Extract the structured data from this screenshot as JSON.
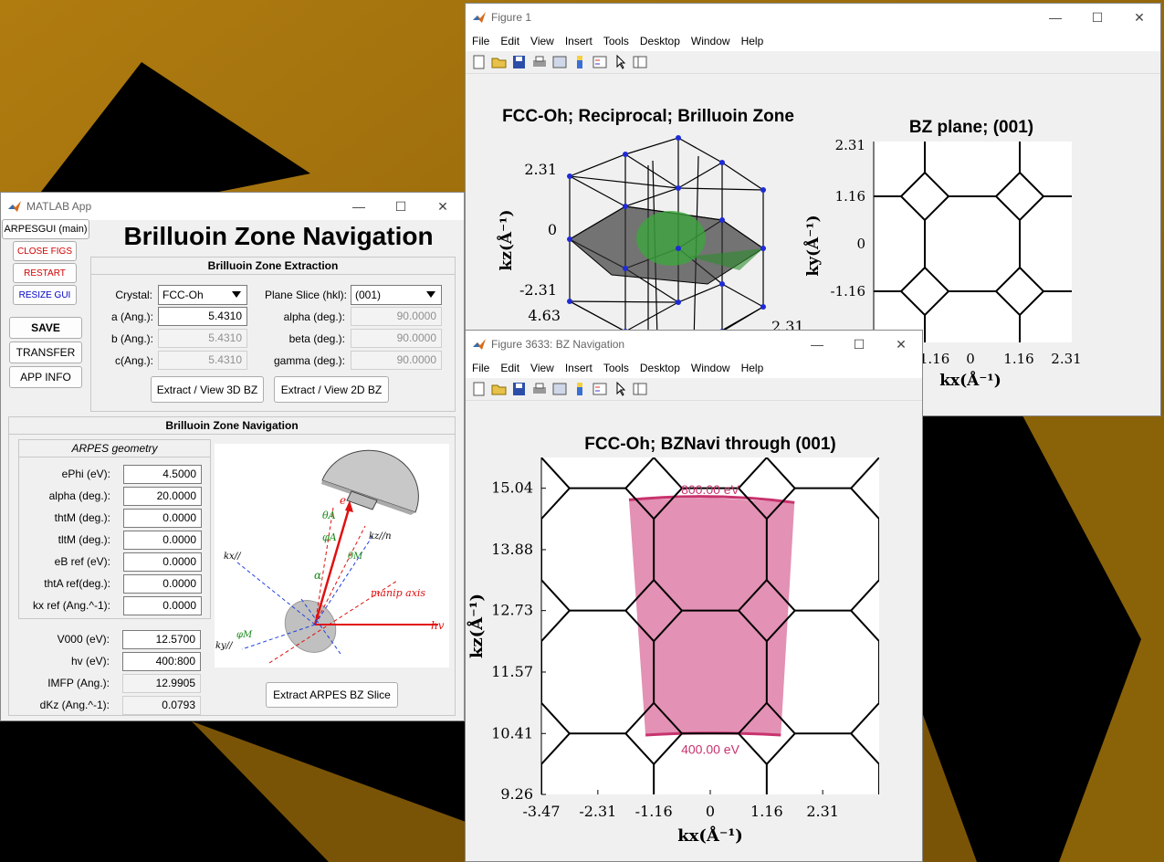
{
  "app": {
    "title": "MATLAB App",
    "main_title": "Brilluoin Zone Navigation",
    "side_buttons": {
      "arpesgui": "ARPESGUI (main)",
      "close_figs": "CLOSE FIGS",
      "restart": "RESTART",
      "resize": "RESIZE GUI",
      "save": "SAVE",
      "transfer": "TRANSFER",
      "app_info": "APP INFO"
    },
    "extraction": {
      "title": "Brilluoin Zone Extraction",
      "crystal_label": "Crystal:",
      "crystal_value": "FCC-Oh",
      "plane_label": "Plane Slice (hkl):",
      "plane_value": "(001)",
      "a_label": "a (Ang.):",
      "a_value": "5.4310",
      "b_label": "b (Ang.):",
      "b_value": "5.4310",
      "c_label": "c(Ang.):",
      "c_value": "5.4310",
      "alpha_label": "alpha (deg.):",
      "alpha_value": "90.0000",
      "beta_label": "beta (deg.):",
      "beta_value": "90.0000",
      "gamma_label": "gamma (deg.):",
      "gamma_value": "90.0000",
      "btn_3d": "Extract / View 3D BZ",
      "btn_2d": "Extract / View 2D BZ"
    },
    "navigation": {
      "title": "Brilluoin Zone Navigation",
      "geom_title": "ARPES geometry",
      "ephi_label": "ePhi (eV):",
      "ephi_value": "4.5000",
      "alpha_label": "alpha (deg.):",
      "alpha_value": "20.0000",
      "thtm_label": "thtM (deg.):",
      "thtm_value": "0.0000",
      "tltm_label": "tltM (deg.):",
      "tltm_value": "0.0000",
      "ebref_label": "eB ref (eV):",
      "ebref_value": "0.0000",
      "thtaref_label": "thtA ref(deg.):",
      "thtaref_value": "0.0000",
      "kxref_label": "kx ref (Ang.^-1):",
      "kxref_value": "0.0000",
      "v000_label": "V000 (eV):",
      "v000_value": "12.5700",
      "hv_label": "hv (eV):",
      "hv_value": "400:800",
      "imfp_label": "IMFP (Ang.):",
      "imfp_value": "12.9905",
      "dkz_label": "dKz (Ang.^-1):",
      "dkz_value": "0.0793",
      "extract_btn": "Extract ARPES BZ Slice"
    },
    "diagram": {
      "theta_a": "θA",
      "phi_a": "φA",
      "e": "e",
      "theta_m": "θM",
      "kz_n": "kz//n",
      "kx": "kx//",
      "alpha": "α",
      "manip": "manip axis",
      "hv": "hv",
      "phi_m": "φM",
      "ky": "ky//"
    }
  },
  "figure1": {
    "title": "Figure 1",
    "menus": [
      "File",
      "Edit",
      "View",
      "Insert",
      "Tools",
      "Desktop",
      "Window",
      "Help"
    ],
    "plot3d_title": "FCC-Oh; Reciprocal; Brilluoin Zone",
    "plot3d_zlabel": "kz(Å⁻¹)",
    "plot3d_zticks": [
      "2.31",
      "0",
      "-2.31"
    ],
    "plot3d_extra_ticks": [
      "4.63",
      "2.31"
    ],
    "plane_title": "BZ plane; (001)",
    "plane_yticks": [
      "2.31",
      "1.16",
      "0",
      "-1.16"
    ],
    "plane_xticks": [
      "-1.16",
      "0",
      "1.16",
      "2.31"
    ],
    "plane_ylabel": "ky(Å⁻¹)",
    "plane_xlabel": "kx(Å⁻¹)"
  },
  "figure2": {
    "title": "Figure 3633: BZ Navigation",
    "menus": [
      "File",
      "Edit",
      "View",
      "Insert",
      "Tools",
      "Desktop",
      "Window",
      "Help"
    ],
    "chart_data": {
      "type": "area",
      "title": "FCC-Oh; BZNavi through (001)",
      "xlabel": "kx(Å⁻¹)",
      "ylabel": "kz(Å⁻¹)",
      "xticks": [
        -3.47,
        -2.31,
        -1.16,
        0,
        1.16,
        2.31
      ],
      "yticks": [
        9.26,
        10.41,
        11.57,
        12.73,
        13.88,
        15.04
      ],
      "xtick_labels": [
        "-3.47",
        "-2.31",
        "-1.16",
        "0",
        "1.16",
        "2.31"
      ],
      "ytick_labels": [
        "9.26",
        "10.41",
        "11.57",
        "12.73",
        "13.88",
        "15.04"
      ],
      "xlim": [
        -3.47,
        3.47
      ],
      "ylim": [
        9.26,
        15.62
      ],
      "annotations": [
        "800.00 eV",
        "400.00 eV"
      ],
      "slice_color": "#c8336e",
      "fill_color": "#e391b4"
    }
  }
}
